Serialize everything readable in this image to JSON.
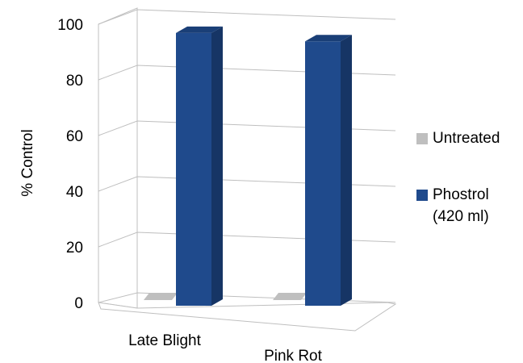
{
  "chart_data": {
    "type": "bar",
    "style": "3d-clustered-column",
    "categories": [
      "Late Blight",
      "Pink Rot"
    ],
    "series": [
      {
        "name": "Untreated",
        "values": [
          0,
          0
        ],
        "color": "#bfbfbf"
      },
      {
        "name": "Phostrol\n(420 ml)",
        "values": [
          98,
          95
        ],
        "color": "#1f4a8c"
      }
    ],
    "ylabel": "% Control",
    "xlabel": "",
    "ylim": [
      0,
      100
    ],
    "yticks": [
      0,
      20,
      40,
      60,
      80,
      100
    ],
    "grid": true,
    "legend_position": "right"
  }
}
